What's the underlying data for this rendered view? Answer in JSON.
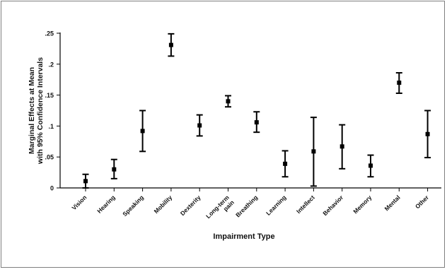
{
  "chart_data": {
    "type": "scatter",
    "title": "",
    "xlabel": "Impairment Type",
    "ylabel_lines": [
      "Marginal Effects at Mean",
      "with 95% Confidence Intervals"
    ],
    "ylim": [
      0,
      0.25
    ],
    "yticks": [
      {
        "value": 0,
        "label": "0"
      },
      {
        "value": 0.05,
        "label": ".05"
      },
      {
        "value": 0.1,
        "label": ".1"
      },
      {
        "value": 0.15,
        "label": ".15"
      },
      {
        "value": 0.2,
        "label": ".2"
      },
      {
        "value": 0.25,
        "label": ".25"
      }
    ],
    "categories": [
      [
        "Vision"
      ],
      [
        "Hearing"
      ],
      [
        "Speaking"
      ],
      [
        "Mobility"
      ],
      [
        "Dexterity"
      ],
      [
        "Long-term",
        "pain"
      ],
      [
        "Breathing"
      ],
      [
        "Learning"
      ],
      [
        "Intellect"
      ],
      [
        "Behavior"
      ],
      [
        "Memory"
      ],
      [
        "Mental"
      ],
      [
        "Other"
      ]
    ],
    "points": [
      {
        "estimate": 0.011,
        "lower": 0.0,
        "upper": 0.022
      },
      {
        "estimate": 0.03,
        "lower": 0.015,
        "upper": 0.046
      },
      {
        "estimate": 0.092,
        "lower": 0.059,
        "upper": 0.125
      },
      {
        "estimate": 0.231,
        "lower": 0.213,
        "upper": 0.249
      },
      {
        "estimate": 0.101,
        "lower": 0.084,
        "upper": 0.118
      },
      {
        "estimate": 0.14,
        "lower": 0.131,
        "upper": 0.149
      },
      {
        "estimate": 0.106,
        "lower": 0.09,
        "upper": 0.123
      },
      {
        "estimate": 0.039,
        "lower": 0.018,
        "upper": 0.06
      },
      {
        "estimate": 0.059,
        "lower": 0.003,
        "upper": 0.114
      },
      {
        "estimate": 0.067,
        "lower": 0.031,
        "upper": 0.102
      },
      {
        "estimate": 0.036,
        "lower": 0.018,
        "upper": 0.053
      },
      {
        "estimate": 0.17,
        "lower": 0.153,
        "upper": 0.186
      },
      {
        "estimate": 0.087,
        "lower": 0.049,
        "upper": 0.125
      }
    ],
    "grid": false,
    "legend": "none"
  }
}
